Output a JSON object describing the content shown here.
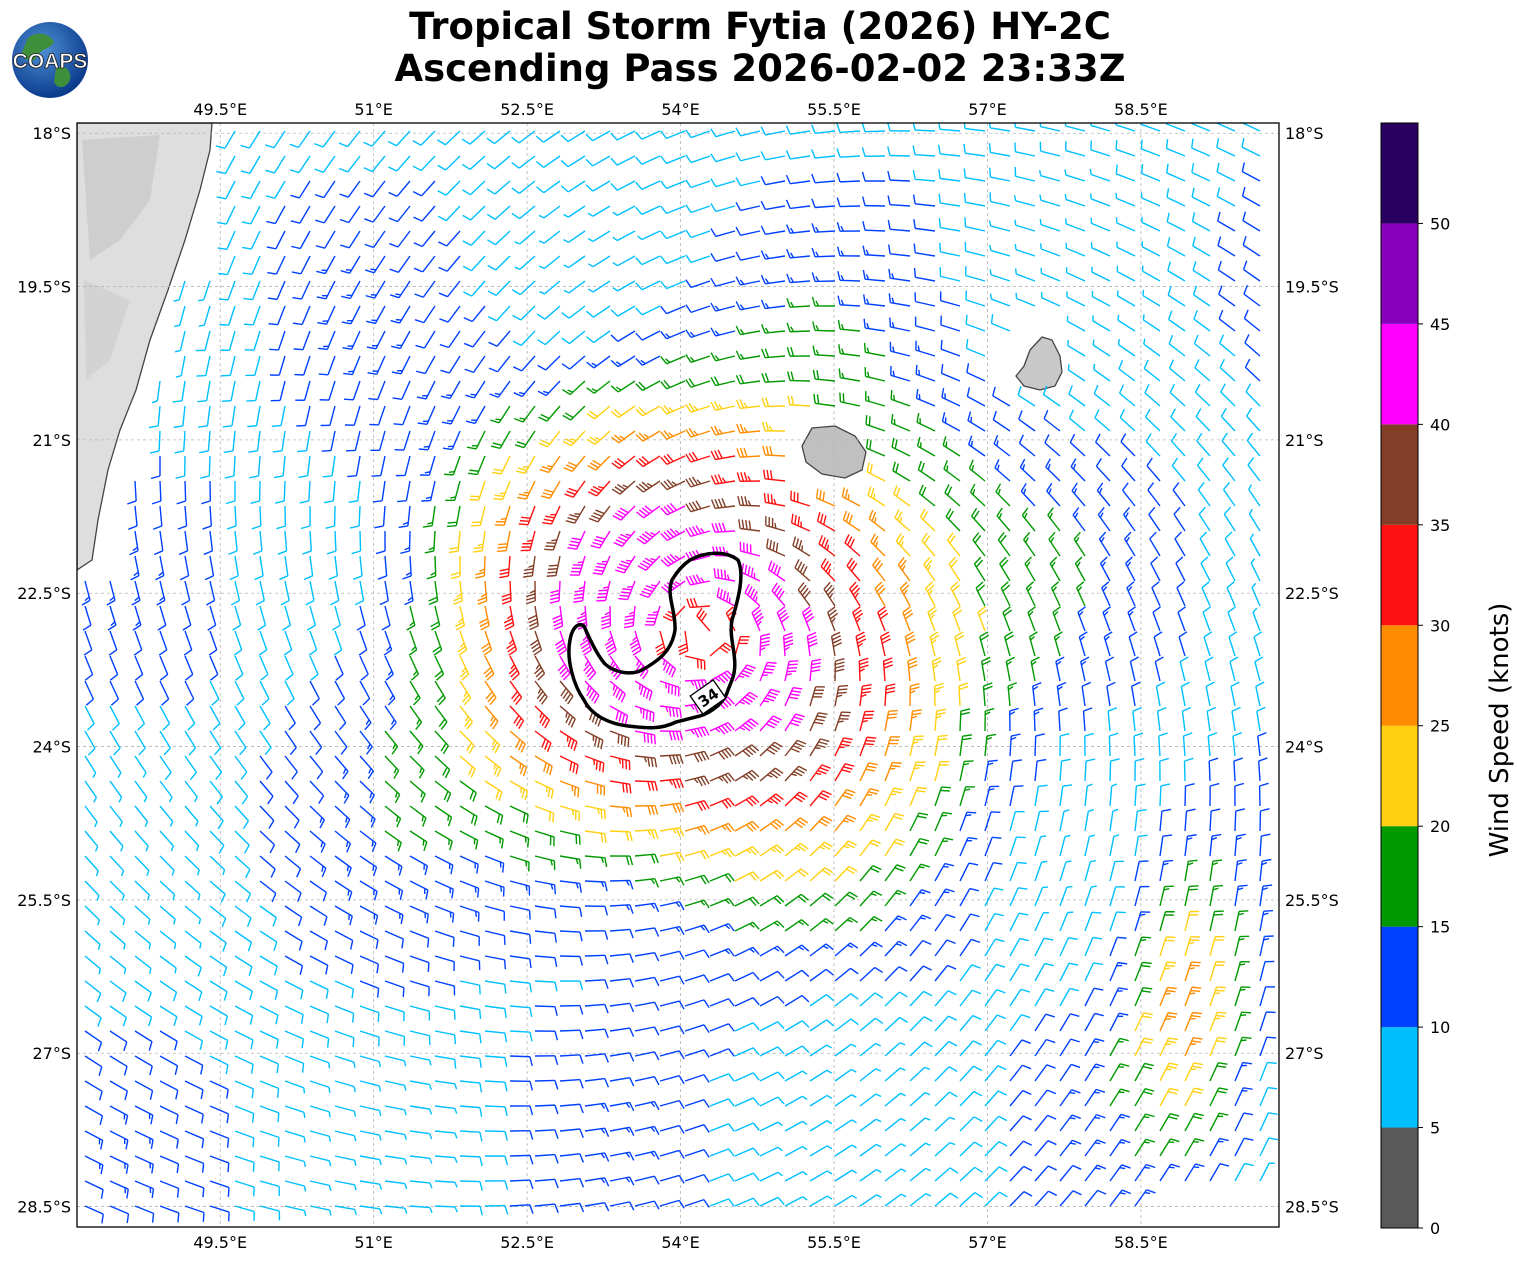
{
  "title": {
    "line1": "Tropical Storm Fytia (2026) HY-2C",
    "line2": "Ascending Pass 2026-02-02 23:33Z"
  },
  "logo": {
    "text": "COAPS",
    "icon": "globe-icon"
  },
  "map": {
    "lon_ticks": [
      "49.5°E",
      "51°E",
      "52.5°E",
      "54°E",
      "55.5°E",
      "57°E",
      "58.5°E"
    ],
    "lat_ticks": [
      "18°S",
      "19.5°S",
      "21°S",
      "22.5°S",
      "24°S",
      "25.5°S",
      "27°S",
      "28.5°S"
    ],
    "lon_range": [
      48.1,
      59.85
    ],
    "lat_range": [
      -17.9,
      -28.7
    ],
    "storm_center": {
      "lon": 54.2,
      "lat": -22.9
    },
    "contour_label": "34",
    "islands": [
      "Réunion",
      "Mauritius",
      "Madagascar"
    ]
  },
  "colorbar": {
    "label": "Wind Speed (knots)",
    "ticks": [
      "0",
      "5",
      "10",
      "15",
      "20",
      "25",
      "30",
      "35",
      "40",
      "45",
      "50"
    ],
    "bins": [
      {
        "min": 0,
        "max": 5,
        "color": "#595959"
      },
      {
        "min": 5,
        "max": 10,
        "color": "#00bfff"
      },
      {
        "min": 10,
        "max": 15,
        "color": "#0040ff"
      },
      {
        "min": 15,
        "max": 20,
        "color": "#009900"
      },
      {
        "min": 20,
        "max": 25,
        "color": "#ffd011"
      },
      {
        "min": 25,
        "max": 30,
        "color": "#ff8c00"
      },
      {
        "min": 30,
        "max": 35,
        "color": "#ff1111"
      },
      {
        "min": 35,
        "max": 40,
        "color": "#823e26"
      },
      {
        "min": 40,
        "max": 45,
        "color": "#ff00ff"
      },
      {
        "min": 45,
        "max": 50,
        "color": "#8800bb"
      },
      {
        "min": 50,
        "max": 55,
        "color": "#2a0060"
      }
    ]
  }
}
